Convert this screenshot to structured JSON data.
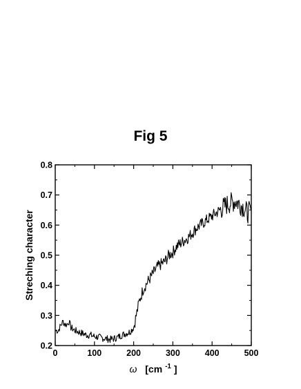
{
  "figure_title": "Fig 5",
  "chart_data": {
    "type": "line",
    "title": "Fig 5",
    "xlabel": "ω [cm⁻¹]",
    "xlabel_parts": {
      "symbol": "ω",
      "unit": "[cm",
      "exponent": "-1",
      "close": "]"
    },
    "ylabel": "Streching character",
    "xlim": [
      0,
      500
    ],
    "ylim": [
      0.2,
      0.8
    ],
    "xticks": [
      0,
      100,
      200,
      300,
      400,
      500
    ],
    "yticks": [
      0.2,
      0.3,
      0.4,
      0.5,
      0.6,
      0.7,
      0.8
    ],
    "grid": false,
    "legend": "none",
    "line_color": "#000000",
    "series": [
      {
        "x": [
          0,
          8,
          15,
          20,
          25,
          30,
          35,
          40,
          50,
          60,
          70,
          80,
          90,
          100,
          110,
          120,
          130,
          140,
          150,
          160,
          170,
          180,
          190,
          200,
          205,
          210,
          215,
          220,
          225,
          230,
          240,
          250,
          260,
          270,
          280,
          290,
          300,
          310,
          320,
          330,
          340,
          350,
          360,
          370,
          380,
          390,
          400,
          410,
          420,
          430,
          440,
          450,
          460,
          470,
          480,
          490,
          500
        ],
        "y": [
          0.25,
          0.25,
          0.27,
          0.28,
          0.27,
          0.27,
          0.28,
          0.26,
          0.25,
          0.245,
          0.24,
          0.235,
          0.235,
          0.23,
          0.228,
          0.225,
          0.223,
          0.22,
          0.223,
          0.228,
          0.235,
          0.24,
          0.245,
          0.26,
          0.29,
          0.32,
          0.35,
          0.37,
          0.39,
          0.4,
          0.42,
          0.44,
          0.46,
          0.47,
          0.48,
          0.5,
          0.51,
          0.53,
          0.54,
          0.55,
          0.56,
          0.575,
          0.59,
          0.6,
          0.61,
          0.62,
          0.63,
          0.64,
          0.65,
          0.66,
          0.67,
          0.675,
          0.68,
          0.67,
          0.66,
          0.64,
          0.65
        ]
      }
    ]
  }
}
